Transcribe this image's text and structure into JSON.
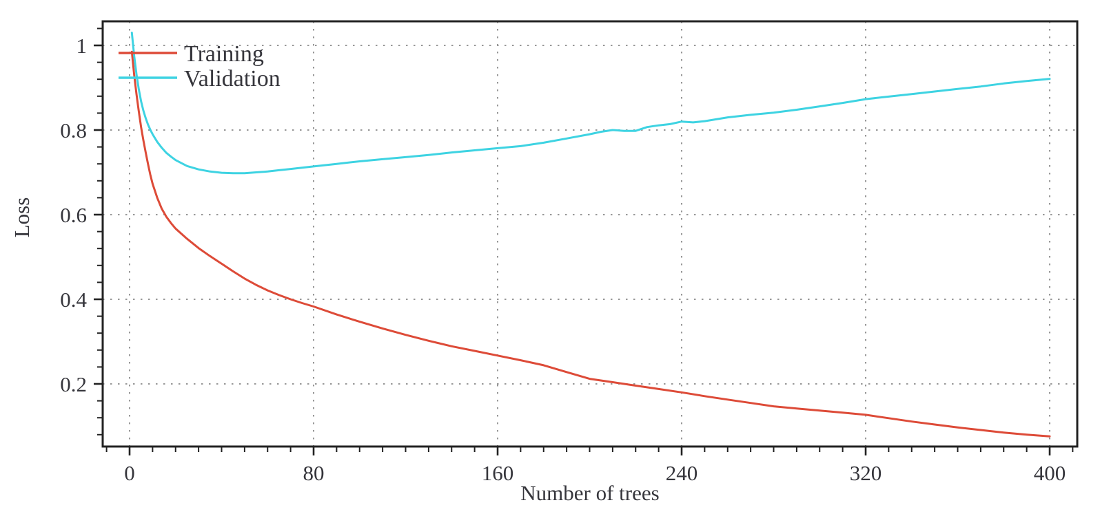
{
  "chart_data": {
    "type": "line",
    "title": "",
    "xlabel": "Number of trees",
    "ylabel": "Loss",
    "xlim": [
      -12,
      412
    ],
    "ylim": [
      0.05,
      1.06
    ],
    "x_ticks": [
      0,
      80,
      160,
      240,
      320,
      400
    ],
    "x_tick_labels": [
      "0",
      "80",
      "160",
      "240",
      "320",
      "400"
    ],
    "y_ticks": [
      0.2,
      0.4,
      0.6,
      0.8,
      1.0
    ],
    "y_tick_labels": [
      "0.2",
      "0.4",
      "0.6",
      "0.8",
      "1"
    ],
    "x_minor_tick_step": 10,
    "y_minor_tick_step": 0.04,
    "grid": "dotted gray lines at every major tick, both axes",
    "legend_position": "top-left inside plot",
    "frame": "full box frame with outward major and minor ticks on left and bottom",
    "colors": {
      "training": "#dd4b38",
      "validation": "#3ed3e2",
      "gridline": "#979797",
      "axis": "#222222",
      "text": "#35353b"
    },
    "series": [
      {
        "name": "Training",
        "color": "#dd4b38",
        "points": [
          [
            1,
            0.985
          ],
          [
            2,
            0.93
          ],
          [
            3,
            0.885
          ],
          [
            4,
            0.845
          ],
          [
            5,
            0.807
          ],
          [
            6,
            0.776
          ],
          [
            7,
            0.747
          ],
          [
            8,
            0.72
          ],
          [
            9,
            0.695
          ],
          [
            10,
            0.673
          ],
          [
            12,
            0.64
          ],
          [
            14,
            0.614
          ],
          [
            16,
            0.595
          ],
          [
            18,
            0.58
          ],
          [
            20,
            0.567
          ],
          [
            25,
            0.543
          ],
          [
            30,
            0.521
          ],
          [
            35,
            0.502
          ],
          [
            40,
            0.484
          ],
          [
            45,
            0.466
          ],
          [
            50,
            0.449
          ],
          [
            55,
            0.434
          ],
          [
            60,
            0.421
          ],
          [
            65,
            0.41
          ],
          [
            70,
            0.4
          ],
          [
            75,
            0.391
          ],
          [
            80,
            0.383
          ],
          [
            90,
            0.364
          ],
          [
            100,
            0.347
          ],
          [
            110,
            0.331
          ],
          [
            120,
            0.316
          ],
          [
            130,
            0.302
          ],
          [
            140,
            0.289
          ],
          [
            150,
            0.278
          ],
          [
            160,
            0.267
          ],
          [
            170,
            0.256
          ],
          [
            180,
            0.244
          ],
          [
            190,
            0.228
          ],
          [
            200,
            0.212
          ],
          [
            210,
            0.204
          ],
          [
            220,
            0.196
          ],
          [
            230,
            0.188
          ],
          [
            240,
            0.18
          ],
          [
            250,
            0.171
          ],
          [
            260,
            0.163
          ],
          [
            270,
            0.155
          ],
          [
            280,
            0.147
          ],
          [
            290,
            0.142
          ],
          [
            300,
            0.137
          ],
          [
            310,
            0.132
          ],
          [
            320,
            0.127
          ],
          [
            330,
            0.119
          ],
          [
            340,
            0.111
          ],
          [
            350,
            0.104
          ],
          [
            360,
            0.097
          ],
          [
            370,
            0.091
          ],
          [
            380,
            0.085
          ],
          [
            390,
            0.08
          ],
          [
            400,
            0.076
          ]
        ]
      },
      {
        "name": "Validation",
        "color": "#3ed3e2",
        "points": [
          [
            1,
            1.03
          ],
          [
            2,
            0.975
          ],
          [
            3,
            0.932
          ],
          [
            4,
            0.897
          ],
          [
            5,
            0.868
          ],
          [
            6,
            0.846
          ],
          [
            7,
            0.828
          ],
          [
            8,
            0.813
          ],
          [
            9,
            0.801
          ],
          [
            10,
            0.79
          ],
          [
            12,
            0.772
          ],
          [
            14,
            0.758
          ],
          [
            16,
            0.746
          ],
          [
            18,
            0.737
          ],
          [
            20,
            0.729
          ],
          [
            25,
            0.715
          ],
          [
            30,
            0.707
          ],
          [
            35,
            0.702
          ],
          [
            40,
            0.699
          ],
          [
            45,
            0.698
          ],
          [
            50,
            0.698
          ],
          [
            55,
            0.7
          ],
          [
            60,
            0.702
          ],
          [
            65,
            0.705
          ],
          [
            70,
            0.708
          ],
          [
            75,
            0.711
          ],
          [
            80,
            0.714
          ],
          [
            90,
            0.72
          ],
          [
            100,
            0.726
          ],
          [
            110,
            0.731
          ],
          [
            120,
            0.736
          ],
          [
            130,
            0.741
          ],
          [
            140,
            0.747
          ],
          [
            150,
            0.752
          ],
          [
            160,
            0.757
          ],
          [
            170,
            0.762
          ],
          [
            180,
            0.77
          ],
          [
            190,
            0.78
          ],
          [
            200,
            0.79
          ],
          [
            205,
            0.796
          ],
          [
            210,
            0.8
          ],
          [
            215,
            0.798
          ],
          [
            220,
            0.798
          ],
          [
            225,
            0.807
          ],
          [
            230,
            0.811
          ],
          [
            235,
            0.814
          ],
          [
            240,
            0.82
          ],
          [
            245,
            0.818
          ],
          [
            250,
            0.821
          ],
          [
            260,
            0.83
          ],
          [
            270,
            0.836
          ],
          [
            280,
            0.841
          ],
          [
            290,
            0.848
          ],
          [
            300,
            0.856
          ],
          [
            310,
            0.864
          ],
          [
            320,
            0.873
          ],
          [
            330,
            0.879
          ],
          [
            340,
            0.885
          ],
          [
            350,
            0.891
          ],
          [
            360,
            0.897
          ],
          [
            370,
            0.903
          ],
          [
            380,
            0.91
          ],
          [
            390,
            0.916
          ],
          [
            400,
            0.921
          ]
        ]
      }
    ]
  }
}
